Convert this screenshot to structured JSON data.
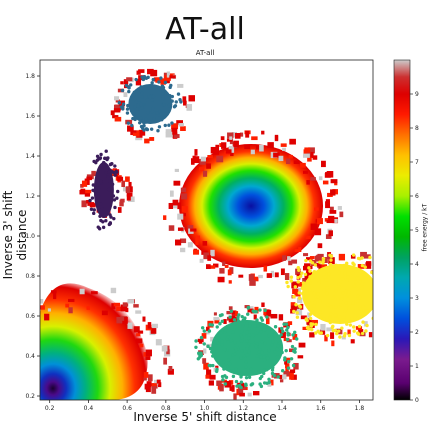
{
  "figure": {
    "main_title": "AT-all",
    "axes_title": "AT-all",
    "xlabel": "Inverse 5' shift distance",
    "ylabel": "Inverse 3' shift distance",
    "colorbar_label": "free energy / kT"
  },
  "chart_data": {
    "type": "heatmap",
    "title": "AT-all",
    "xlabel": "Inverse 5' shift distance",
    "ylabel": "Inverse 3' shift distance",
    "xlim": [
      0.15,
      1.87
    ],
    "ylim": [
      0.18,
      1.88
    ],
    "xticks": [
      0.2,
      0.4,
      0.6,
      0.8,
      1.0,
      1.2,
      1.4,
      1.6,
      1.8
    ],
    "yticks": [
      0.2,
      0.4,
      0.6,
      0.8,
      1.0,
      1.2,
      1.4,
      1.6,
      1.8
    ],
    "grid": false,
    "colorbar": {
      "label": "free energy / kT",
      "range": [
        0,
        10
      ],
      "ticks": [
        0,
        1,
        2,
        3,
        4,
        5,
        6,
        7,
        8,
        9
      ],
      "colormap": "nipy_spectral"
    },
    "free_energy_minima": [
      {
        "x": 0.23,
        "y": 0.22,
        "free_energy": 0.2
      },
      {
        "x": 1.24,
        "y": 1.15,
        "free_energy": 1.7
      }
    ],
    "overlay_clusters": [
      {
        "center_x": 0.72,
        "center_y": 1.66,
        "color": "#2d6a8e"
      },
      {
        "center_x": 0.48,
        "center_y": 1.23,
        "color": "#3b1c5a"
      },
      {
        "center_x": 1.22,
        "center_y": 0.44,
        "color": "#2bb07f"
      },
      {
        "center_x": 1.7,
        "center_y": 0.71,
        "color": "#fde725"
      }
    ]
  }
}
